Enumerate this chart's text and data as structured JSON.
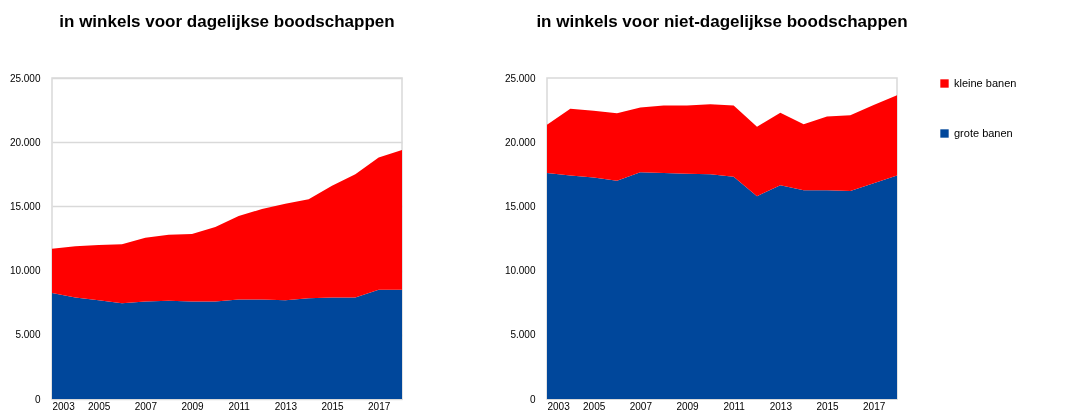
{
  "chart_data": [
    {
      "type": "area",
      "title": "in winkels voor dagelijkse boodschappen",
      "stacked": true,
      "grid": "y",
      "legend": "right",
      "x": [
        2003,
        2004,
        2005,
        2006,
        2007,
        2008,
        2009,
        2010,
        2011,
        2012,
        2013,
        2014,
        2015,
        2016,
        2017,
        2018
      ],
      "xlim": [
        2003,
        2018
      ],
      "xticks": [
        2003,
        2005,
        2007,
        2009,
        2011,
        2013,
        2015,
        2017
      ],
      "ylim": [
        0,
        25000
      ],
      "yticks": [
        {
          "value": 0,
          "label": "0"
        },
        {
          "value": 5000,
          "label": "5.000"
        },
        {
          "value": 10000,
          "label": "10.000"
        },
        {
          "value": 15000,
          "label": "15.000"
        },
        {
          "value": 20000,
          "label": "20.000"
        },
        {
          "value": 25000,
          "label": "25.000"
        }
      ],
      "series": [
        {
          "name": "grote banen",
          "color": "#00479b",
          "values": [
            8250,
            7900,
            7700,
            7450,
            7600,
            7650,
            7600,
            7600,
            7750,
            7750,
            7700,
            7850,
            7900,
            7900,
            8500,
            8500
          ]
        },
        {
          "name": "kleine banen",
          "color": "#ff0000",
          "values": [
            3450,
            4000,
            4300,
            4600,
            4950,
            5150,
            5250,
            5800,
            6500,
            7050,
            7500,
            7700,
            8700,
            9600,
            10300,
            10900
          ]
        }
      ]
    },
    {
      "type": "area",
      "title": "in winkels voor niet-dagelijkse boodschappen",
      "stacked": true,
      "legend": "right",
      "x": [
        2003,
        2004,
        2005,
        2006,
        2007,
        2008,
        2009,
        2010,
        2011,
        2012,
        2013,
        2014,
        2015,
        2016,
        2017,
        2018
      ],
      "xlim": [
        2003,
        2018
      ],
      "xticks": [
        2003,
        2005,
        2007,
        2009,
        2011,
        2013,
        2015,
        2017
      ],
      "ylim": [
        0,
        25000
      ],
      "yticks": [
        {
          "value": 0,
          "label": "0"
        },
        {
          "value": 5000,
          "label": "5.000"
        },
        {
          "value": 10000,
          "label": "10.000"
        },
        {
          "value": 15000,
          "label": "15.000"
        },
        {
          "value": 20000,
          "label": "20.000"
        },
        {
          "value": 25000,
          "label": "25.000"
        }
      ],
      "series": [
        {
          "name": "grote banen",
          "color": "#00479b",
          "values": [
            17600,
            17400,
            17250,
            17000,
            17650,
            17600,
            17550,
            17500,
            17300,
            15800,
            16650,
            16250,
            16250,
            16200,
            16800,
            17400
          ]
        },
        {
          "name": "kleine banen",
          "color": "#ff0000",
          "values": [
            3750,
            5200,
            5200,
            5250,
            5050,
            5250,
            5300,
            5450,
            5550,
            5400,
            5650,
            5150,
            5750,
            5900,
            6100,
            6250
          ]
        }
      ]
    }
  ]
}
